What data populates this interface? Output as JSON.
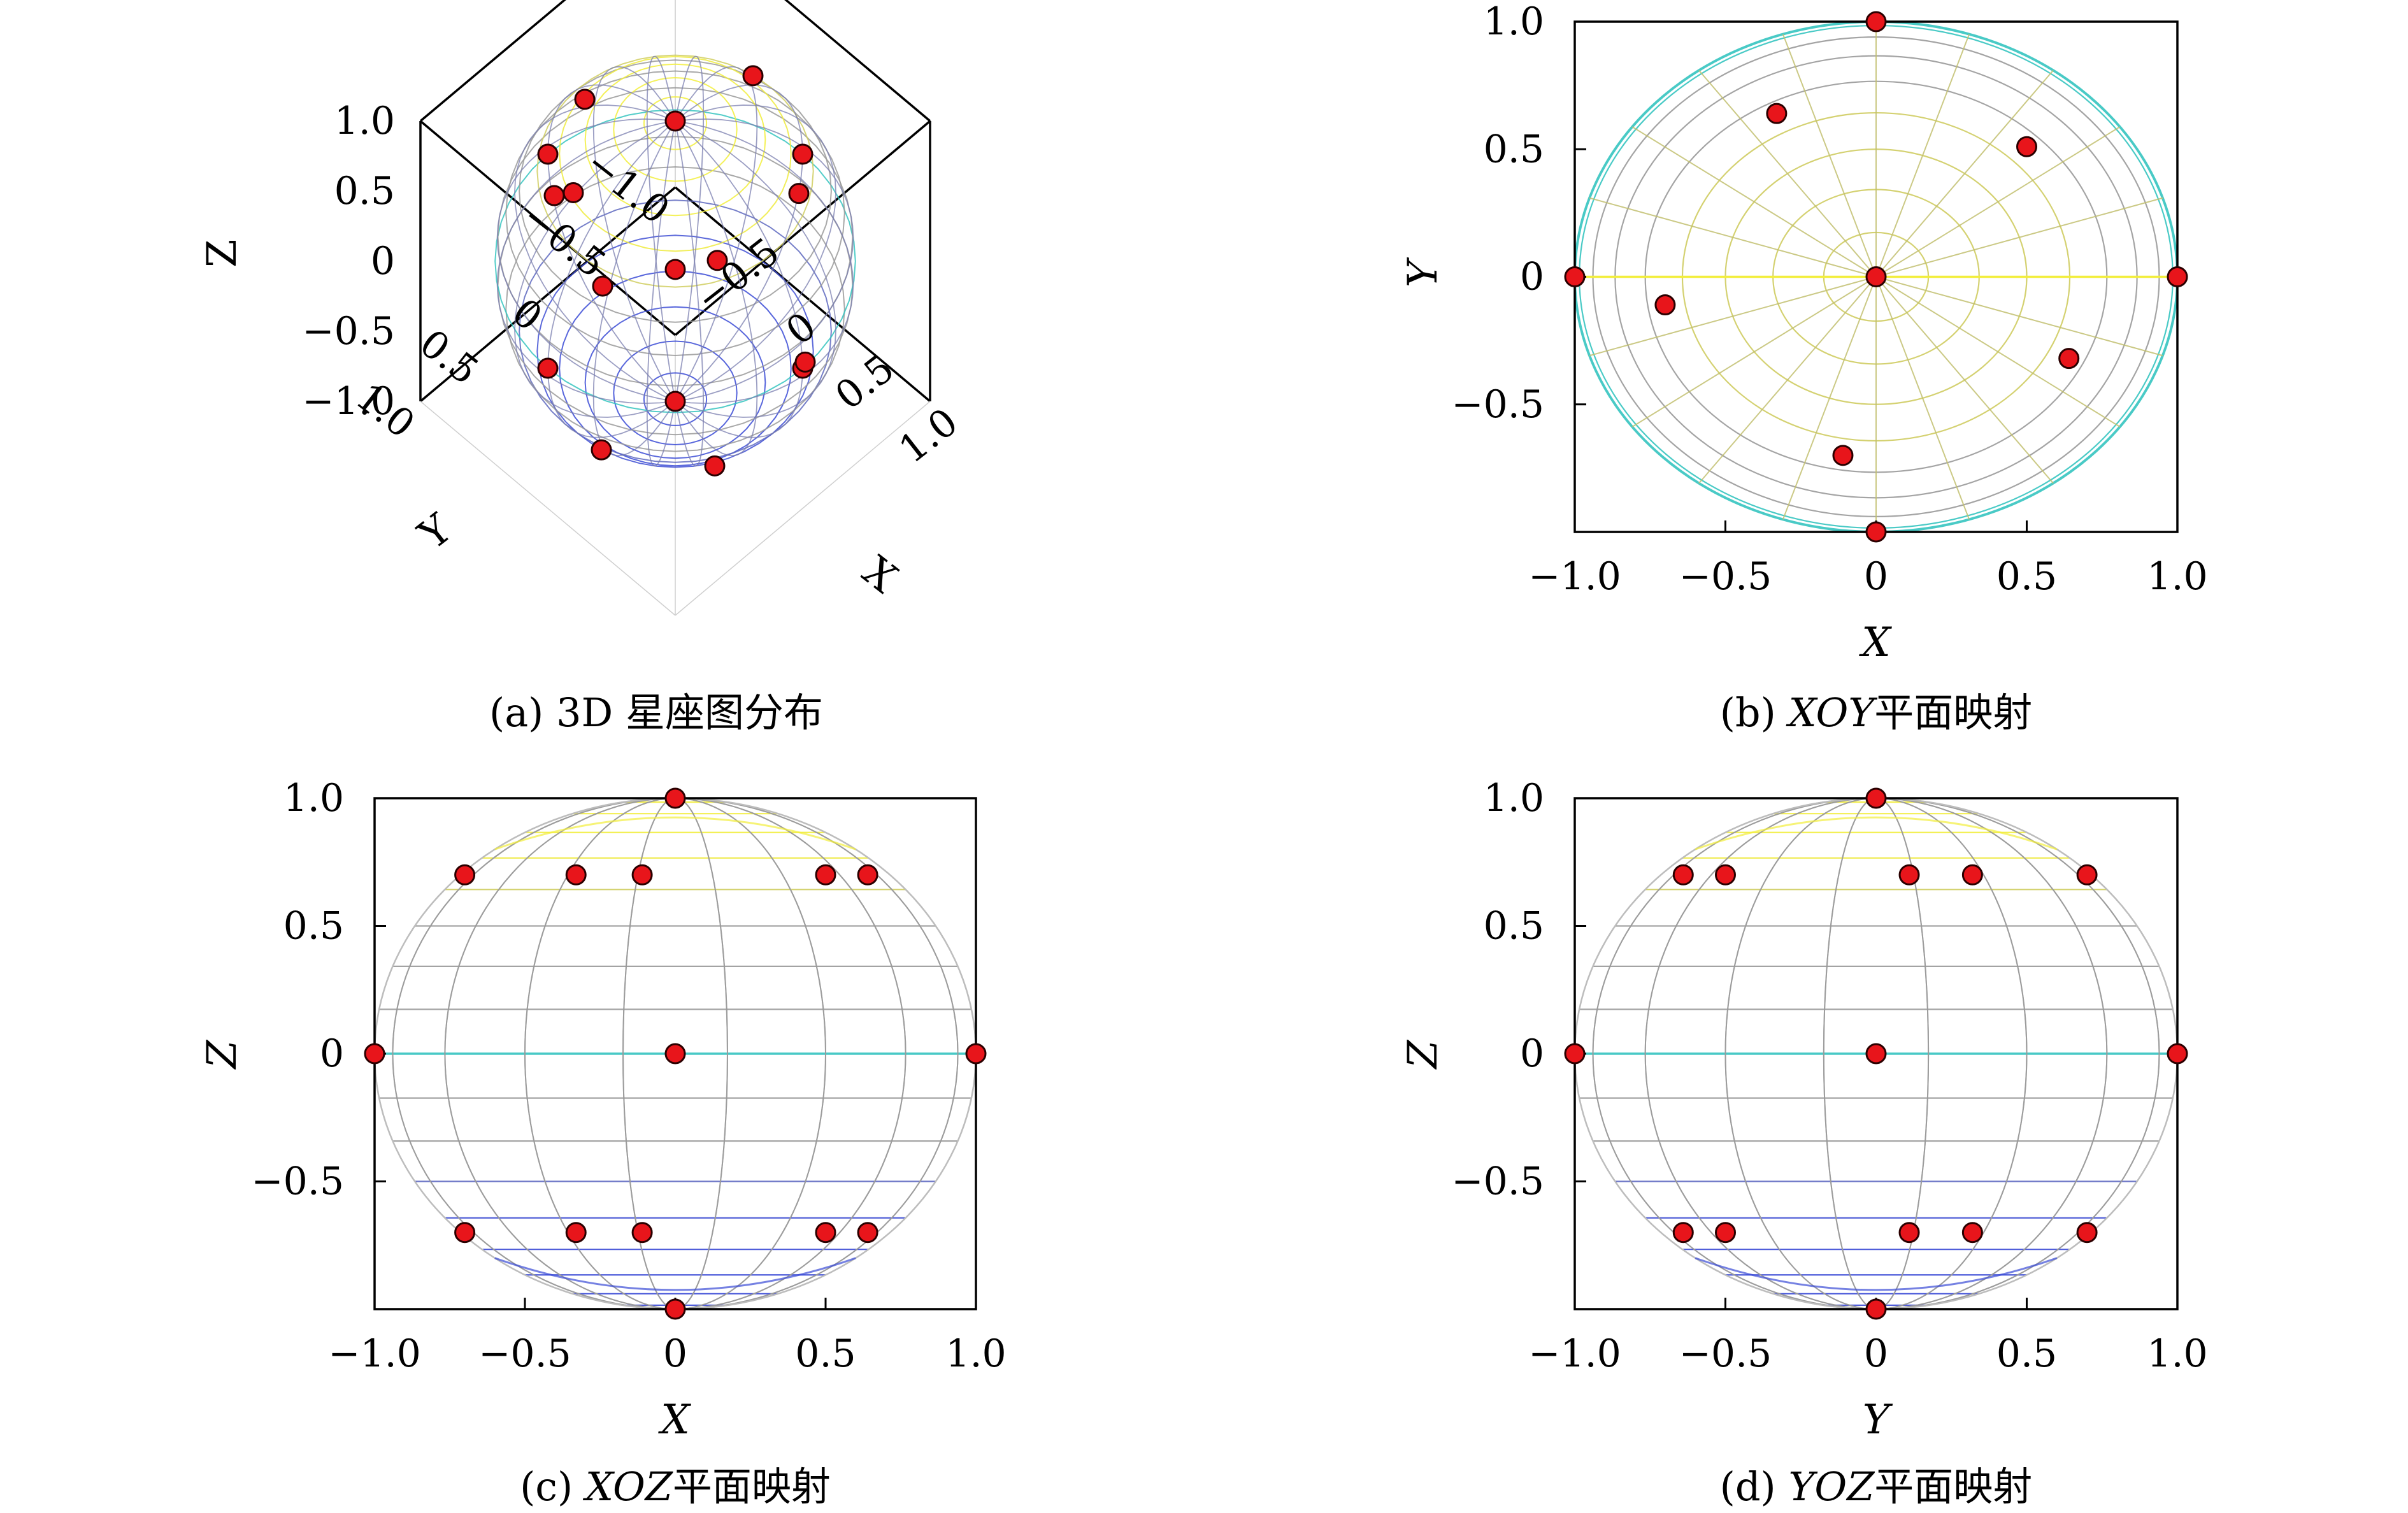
{
  "chart_data": [
    {
      "id": "a",
      "type": "scatter",
      "projection": "3d",
      "caption": "(a) 3D 星座图分布",
      "xlabel": "X",
      "ylabel": "Y",
      "zlabel": "Z",
      "xlim": [
        -1,
        1
      ],
      "ylim": [
        -1,
        1
      ],
      "zlim": [
        -1,
        1
      ],
      "xticks": [
        "−0.5",
        "0",
        "0.5",
        "1.0"
      ],
      "yticks": [
        "1.0",
        "0.5",
        "0",
        "−0.5",
        "−1.0"
      ],
      "zticks": [
        "1.0",
        "0.5",
        "0",
        "−0.5",
        "−1.0"
      ],
      "points": [
        {
          "x": 0,
          "y": 0,
          "z": 1
        },
        {
          "x": -0.64,
          "y": 0.07,
          "z": 0.72
        },
        {
          "x": -0.31,
          "y": 0.64,
          "z": 0.72
        },
        {
          "x": -0.09,
          "y": -0.7,
          "z": 0.72
        },
        {
          "x": 0.51,
          "y": 0.51,
          "z": 0.72
        },
        {
          "x": 0.64,
          "y": -0.33,
          "z": 0.72
        },
        {
          "x": -0.72,
          "y": 0.08,
          "z": 0
        },
        {
          "x": 1,
          "y": 0,
          "z": 0
        },
        {
          "x": 0,
          "y": 1,
          "z": 0
        },
        {
          "x": -1,
          "y": 0,
          "z": 0
        },
        {
          "x": 0,
          "y": -1,
          "z": 0
        },
        {
          "x": -0.64,
          "y": -0.07,
          "z": -0.72
        },
        {
          "x": -0.31,
          "y": -0.64,
          "z": -0.72
        },
        {
          "x": 0.12,
          "y": 0.7,
          "z": -0.72
        },
        {
          "x": 0.51,
          "y": -0.51,
          "z": -0.72
        },
        {
          "x": 0.64,
          "y": 0.33,
          "z": -0.72
        },
        {
          "x": 0,
          "y": 0,
          "z": -1
        }
      ]
    },
    {
      "id": "b",
      "type": "scatter",
      "caption": "(b) ",
      "caption_math": "XOY",
      "caption_tail": "平面映射",
      "xlabel": "X",
      "ylabel": "Y",
      "xlim": [
        -1,
        1
      ],
      "ylim": [
        -1,
        1
      ],
      "xticks": [
        {
          "v": -1,
          "t": "−1.0"
        },
        {
          "v": -0.5,
          "t": "−0.5"
        },
        {
          "v": 0,
          "t": "0"
        },
        {
          "v": 0.5,
          "t": "0.5"
        },
        {
          "v": 1,
          "t": "1.0"
        }
      ],
      "yticks": [
        {
          "v": -0.5,
          "t": "−0.5"
        },
        {
          "v": 0,
          "t": "0"
        },
        {
          "v": 0.5,
          "t": "0.5"
        },
        {
          "v": 1,
          "t": "1.0"
        }
      ],
      "points": [
        {
          "x": 0,
          "y": 1
        },
        {
          "x": -0.33,
          "y": 0.64
        },
        {
          "x": 0.5,
          "y": 0.51
        },
        {
          "x": -1,
          "y": 0
        },
        {
          "x": 0,
          "y": 0
        },
        {
          "x": 1,
          "y": 0
        },
        {
          "x": -0.7,
          "y": -0.11
        },
        {
          "x": 0.64,
          "y": -0.32
        },
        {
          "x": -0.11,
          "y": -0.7
        },
        {
          "x": 0,
          "y": -1
        }
      ]
    },
    {
      "id": "c",
      "type": "scatter",
      "caption": "(c) ",
      "caption_math": "XOZ",
      "caption_tail": "平面映射",
      "xlabel": "X",
      "ylabel": "Z",
      "xlim": [
        -1,
        1
      ],
      "ylim": [
        -1,
        1
      ],
      "xticks": [
        {
          "v": -1,
          "t": "−1.0"
        },
        {
          "v": -0.5,
          "t": "−0.5"
        },
        {
          "v": 0,
          "t": "0"
        },
        {
          "v": 0.5,
          "t": "0.5"
        },
        {
          "v": 1,
          "t": "1.0"
        }
      ],
      "yticks": [
        {
          "v": -0.5,
          "t": "−0.5"
        },
        {
          "v": 0,
          "t": "0"
        },
        {
          "v": 0.5,
          "t": "0.5"
        },
        {
          "v": 1,
          "t": "1.0"
        }
      ],
      "points": [
        {
          "x": 0,
          "y": 1
        },
        {
          "x": -0.7,
          "y": 0.7
        },
        {
          "x": -0.33,
          "y": 0.7
        },
        {
          "x": -0.11,
          "y": 0.7
        },
        {
          "x": 0.5,
          "y": 0.7
        },
        {
          "x": 0.64,
          "y": 0.7
        },
        {
          "x": -1,
          "y": 0
        },
        {
          "x": 0,
          "y": 0
        },
        {
          "x": 1,
          "y": 0
        },
        {
          "x": -0.7,
          "y": -0.7
        },
        {
          "x": -0.33,
          "y": -0.7
        },
        {
          "x": -0.11,
          "y": -0.7
        },
        {
          "x": 0.5,
          "y": -0.7
        },
        {
          "x": 0.64,
          "y": -0.7
        },
        {
          "x": 0,
          "y": -1
        }
      ]
    },
    {
      "id": "d",
      "type": "scatter",
      "caption": "(d) ",
      "caption_math": "YOZ",
      "caption_tail": "平面映射",
      "xlabel": "Y",
      "ylabel": "Z",
      "xlim": [
        -1,
        1
      ],
      "ylim": [
        -1,
        1
      ],
      "xticks": [
        {
          "v": -1,
          "t": "−1.0"
        },
        {
          "v": -0.5,
          "t": "−0.5"
        },
        {
          "v": 0,
          "t": "0"
        },
        {
          "v": 0.5,
          "t": "0.5"
        },
        {
          "v": 1,
          "t": "1.0"
        }
      ],
      "yticks": [
        {
          "v": -0.5,
          "t": "−0.5"
        },
        {
          "v": 0,
          "t": "0"
        },
        {
          "v": 0.5,
          "t": "0.5"
        },
        {
          "v": 1,
          "t": "1.0"
        }
      ],
      "points": [
        {
          "x": 0,
          "y": 1
        },
        {
          "x": -0.64,
          "y": 0.7
        },
        {
          "x": -0.5,
          "y": 0.7
        },
        {
          "x": 0.11,
          "y": 0.7
        },
        {
          "x": 0.32,
          "y": 0.7
        },
        {
          "x": 0.7,
          "y": 0.7
        },
        {
          "x": -1,
          "y": 0
        },
        {
          "x": 0,
          "y": 0
        },
        {
          "x": 1,
          "y": 0
        },
        {
          "x": -0.64,
          "y": -0.7
        },
        {
          "x": -0.5,
          "y": -0.7
        },
        {
          "x": 0.11,
          "y": -0.7
        },
        {
          "x": 0.32,
          "y": -0.7
        },
        {
          "x": 0.7,
          "y": -0.7
        },
        {
          "x": 0,
          "y": -1
        }
      ]
    }
  ],
  "colors": {
    "marker_fill": "#e8151b",
    "marker_edge": "#2a0000",
    "mesh_top": "#f2ee3c",
    "mesh_mid": "#35c4c0",
    "mesh_low": "#3b4bd6",
    "mesh_gray": "#9a9a9a",
    "frame": "#000000"
  }
}
